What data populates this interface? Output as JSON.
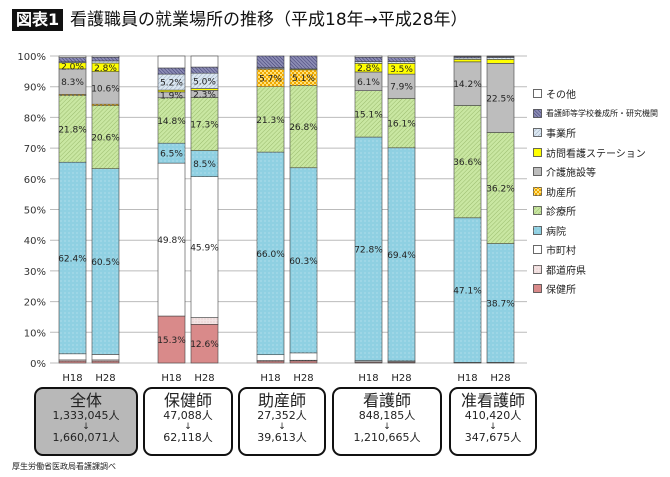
{
  "header": {
    "figure_tag": "図表1",
    "title": "看護職員の就業場所の推移（平成18年→平成28年）"
  },
  "chart_data": {
    "type": "bar",
    "stacked": true,
    "ylim": [
      0,
      100
    ],
    "yticks": [
      "0%",
      "10%",
      "20%",
      "30%",
      "40%",
      "50%",
      "60%",
      "70%",
      "80%",
      "90%",
      "100%"
    ],
    "grid": true,
    "legend_position": "right",
    "groups": [
      {
        "name": "全体",
        "bars": [
          "H18",
          "H28"
        ],
        "count_h18": "1,333,045人",
        "arrow": "↓",
        "count_h28": "1,660,071人",
        "highlight": true
      },
      {
        "name": "保健師",
        "bars": [
          "H18",
          "H28"
        ],
        "count_h18": "47,088人",
        "arrow": "↓",
        "count_h28": "62,118人"
      },
      {
        "name": "助産師",
        "bars": [
          "H18",
          "H28"
        ],
        "count_h18": "27,352人",
        "arrow": "↓",
        "count_h28": "39,613人"
      },
      {
        "name": "看護師",
        "bars": [
          "H18",
          "H28"
        ],
        "count_h18": "848,185人",
        "arrow": "↓",
        "count_h28": "1,210,665人"
      },
      {
        "name": "准看護師",
        "bars": [
          "H18",
          "H28"
        ],
        "count_h18": "410,420人",
        "arrow": "↓",
        "count_h28": "347,675人"
      }
    ],
    "series": [
      {
        "name": "保健所",
        "color": "#d98a8a",
        "values": [
          [
            0.6,
            0.6
          ],
          [
            15.3,
            12.6
          ],
          [
            0.6,
            0.7
          ],
          [
            0.3,
            0.3
          ],
          [
            0.1,
            0.1
          ]
        ],
        "labeled": [
          [
            false,
            false
          ],
          [
            true,
            true
          ],
          [
            false,
            false
          ],
          [
            false,
            false
          ],
          [
            false,
            false
          ]
        ]
      },
      {
        "name": "都道府県",
        "color": "#f3e4e4",
        "values": [
          [
            0.4,
            0.4
          ],
          [
            0.0,
            2.2
          ],
          [
            0.2,
            0.2
          ],
          [
            0.1,
            0.1
          ],
          [
            0.0,
            0.0
          ]
        ],
        "labeled": [
          [
            false,
            false
          ],
          [
            false,
            false
          ],
          [
            false,
            false
          ],
          [
            false,
            false
          ],
          [
            false,
            false
          ]
        ]
      },
      {
        "name": "市町村",
        "color": "#ffffff",
        "values": [
          [
            2.0,
            1.8
          ],
          [
            49.8,
            45.9
          ],
          [
            1.9,
            2.4
          ],
          [
            0.4,
            0.3
          ],
          [
            0.1,
            0.1
          ]
        ],
        "labeled": [
          [
            false,
            false
          ],
          [
            true,
            true
          ],
          [
            false,
            false
          ],
          [
            false,
            false
          ],
          [
            false,
            false
          ]
        ]
      },
      {
        "name": "病院",
        "color": "#8fd0e2",
        "values": [
          [
            62.4,
            60.5
          ],
          [
            6.5,
            8.5
          ],
          [
            66.0,
            60.3
          ],
          [
            72.8,
            69.4
          ],
          [
            47.1,
            38.7
          ]
        ],
        "labeled": [
          [
            true,
            true
          ],
          [
            true,
            true
          ],
          [
            true,
            true
          ],
          [
            true,
            true
          ],
          [
            true,
            true
          ]
        ]
      },
      {
        "name": "診療所",
        "color": "#c9e7a2",
        "values": [
          [
            21.8,
            20.6
          ],
          [
            14.8,
            17.3
          ],
          [
            21.3,
            26.8
          ],
          [
            15.1,
            16.1
          ],
          [
            36.6,
            36.2
          ]
        ],
        "labeled": [
          [
            true,
            true
          ],
          [
            true,
            true
          ],
          [
            true,
            true
          ],
          [
            true,
            true
          ],
          [
            true,
            true
          ]
        ]
      },
      {
        "name": "助産所",
        "color": "#ffe27a",
        "values": [
          [
            0.3,
            0.4
          ],
          [
            0.0,
            0.0
          ],
          [
            5.7,
            5.1
          ],
          [
            0.0,
            0.0
          ],
          [
            0.0,
            0.0
          ]
        ],
        "labeled": [
          [
            false,
            false
          ],
          [
            false,
            false
          ],
          [
            true,
            true
          ],
          [
            false,
            false
          ],
          [
            false,
            false
          ]
        ]
      },
      {
        "name": "介護施設等",
        "color": "#bdbdbd",
        "values": [
          [
            8.3,
            10.6
          ],
          [
            1.9,
            2.3
          ],
          [
            0.0,
            0.0
          ],
          [
            6.1,
            7.9
          ],
          [
            14.2,
            22.5
          ]
        ],
        "labeled": [
          [
            true,
            true
          ],
          [
            true,
            true
          ],
          [
            false,
            false
          ],
          [
            true,
            true
          ],
          [
            true,
            true
          ]
        ]
      },
      {
        "name": "訪問看護ステーション",
        "color": "#ffff00",
        "values": [
          [
            2.0,
            2.8
          ],
          [
            0.6,
            0.6
          ],
          [
            0.2,
            0.3
          ],
          [
            2.8,
            3.5
          ],
          [
            0.8,
            1.3
          ]
        ],
        "labeled": [
          [
            true,
            true
          ],
          [
            false,
            false
          ],
          [
            false,
            false
          ],
          [
            true,
            true
          ],
          [
            false,
            false
          ]
        ]
      },
      {
        "name": "事業所",
        "color": "#dce8f2",
        "values": [
          [
            0.3,
            0.7
          ],
          [
            5.2,
            5.0
          ],
          [
            0.3,
            0.0
          ],
          [
            0.6,
            0.6
          ],
          [
            0.5,
            0.6
          ]
        ],
        "labeled": [
          [
            false,
            false
          ],
          [
            true,
            true
          ],
          [
            false,
            false
          ],
          [
            false,
            false
          ],
          [
            false,
            false
          ]
        ]
      },
      {
        "name": "看護師等学校養成所・研究機関",
        "color": "#8c8cb4",
        "values": [
          [
            1.4,
            1.2
          ],
          [
            2.0,
            2.0
          ],
          [
            3.8,
            4.2
          ],
          [
            1.4,
            1.3
          ],
          [
            0.4,
            0.3
          ]
        ],
        "labeled": [
          [
            false,
            false
          ],
          [
            false,
            false
          ],
          [
            false,
            false
          ],
          [
            false,
            false
          ],
          [
            false,
            false
          ]
        ]
      },
      {
        "name": "その他",
        "color": "#ffffff",
        "values": [
          [
            0.5,
            0.4
          ],
          [
            3.9,
            3.6
          ],
          [
            0.0,
            0.0
          ],
          [
            0.4,
            0.5
          ],
          [
            0.2,
            0.2
          ]
        ],
        "labeled": [
          [
            false,
            false
          ],
          [
            false,
            false
          ],
          [
            false,
            false
          ],
          [
            false,
            false
          ],
          [
            false,
            false
          ]
        ]
      }
    ]
  },
  "source": "厚生労働省医政局看護課調べ"
}
